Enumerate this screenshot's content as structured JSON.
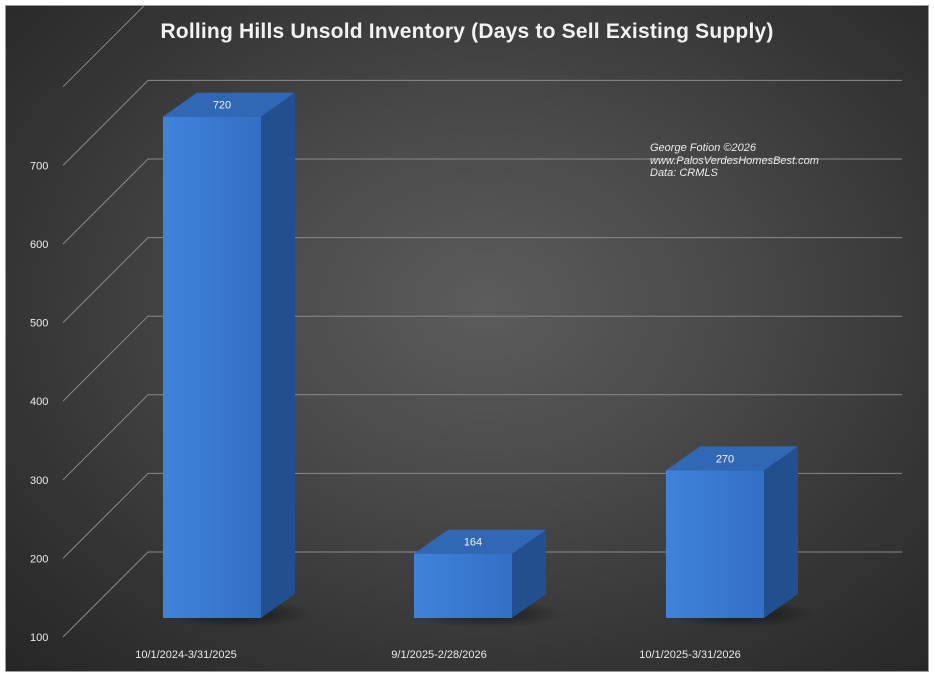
{
  "chart_data": {
    "type": "bar",
    "title": "Rolling Hills Unsold Inventory (Days to Sell Existing Supply)",
    "categories": [
      "10/1/2024-3/31/2025",
      "9/1/2025-2/28/2026",
      "10/1/2025-3/31/2026"
    ],
    "values": [
      720,
      164,
      270
    ],
    "data_labels": [
      "720",
      "164",
      "270"
    ],
    "ylim": [
      100,
      780
    ],
    "yticks": [
      100,
      200,
      300,
      400,
      500,
      600,
      700
    ],
    "ytick_labels": [
      "100",
      "200",
      "300",
      "400",
      "500",
      "600",
      "700"
    ],
    "grid": true,
    "three_d": true,
    "bar_color": "#3a7bd5",
    "xlabel": "",
    "ylabel": "",
    "annotation": [
      "George Fotion ©2026",
      "www.PalosVerdesHomesBest.com",
      "Data: CRMLS"
    ]
  }
}
